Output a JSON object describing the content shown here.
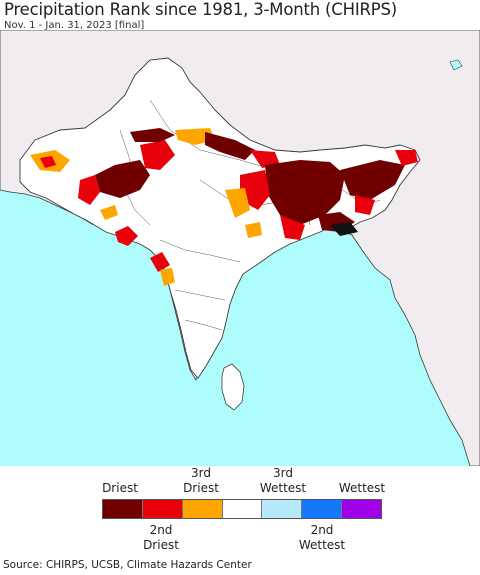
{
  "header": {
    "title": "Precipitation Rank since 1981, 3-Month (CHIRPS)",
    "subtitle": "Nov. 1 - Jan. 31, 2023 [final]"
  },
  "colors": {
    "ocean": "#aefcfc",
    "land_outside": "#f0ecf0",
    "land_inside": "#ffffff",
    "border": "#3a3a3a",
    "driest": "#700000",
    "second_driest": "#e8000a",
    "third_driest": "#ffa500",
    "normal": "#ffffff",
    "third_wettest": "#b8e8fc",
    "second_wettest": "#1478ff",
    "wettest": "#a000e8"
  },
  "legend": {
    "top_labels": [
      {
        "id": "driest",
        "line1": "Driest",
        "line2": ""
      },
      {
        "id": "third-driest",
        "line1": "3rd",
        "line2": "Driest"
      },
      {
        "id": "third-wettest",
        "line1": "3rd",
        "line2": "Wettest"
      },
      {
        "id": "wettest",
        "line1": "Wettest",
        "line2": ""
      }
    ],
    "bottom_labels": [
      {
        "id": "second-driest",
        "line1": "2nd",
        "line2": "Driest"
      },
      {
        "id": "second-wettest",
        "line1": "2nd",
        "line2": "Wettest"
      }
    ],
    "swatches": [
      "driest",
      "second_driest",
      "third_driest",
      "normal",
      "third_wettest",
      "second_wettest",
      "wettest"
    ]
  },
  "footer": {
    "source": "Source: CHIRPS, UCSB, Climate Hazards Center"
  }
}
